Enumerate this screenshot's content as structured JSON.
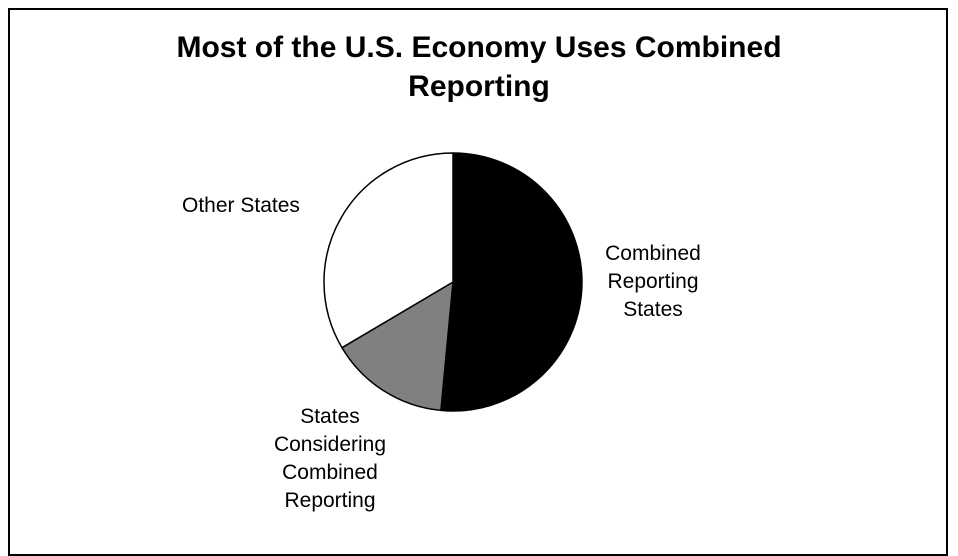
{
  "chart_data": {
    "type": "pie",
    "title": "Most of the U.S. Economy Uses Combined Reporting",
    "title_lines": [
      "Most of the U.S. Economy Uses Combined",
      "Reporting"
    ],
    "slices": [
      {
        "label": "Combined Reporting States",
        "label_lines": [
          "Combined",
          "Reporting",
          "States"
        ],
        "value": 51.5,
        "color": "#000000"
      },
      {
        "label": "States Considering Combined Reporting",
        "label_lines": [
          "States",
          "Considering",
          "Combined",
          "Reporting"
        ],
        "value": 15,
        "color": "#808080"
      },
      {
        "label": "Other States",
        "label_lines": [
          "Other States"
        ],
        "value": 33.5,
        "color": "#ffffff"
      }
    ],
    "start_angle_deg": 0,
    "direction": "clockwise",
    "outline_color": "#000000",
    "legend": "none"
  }
}
